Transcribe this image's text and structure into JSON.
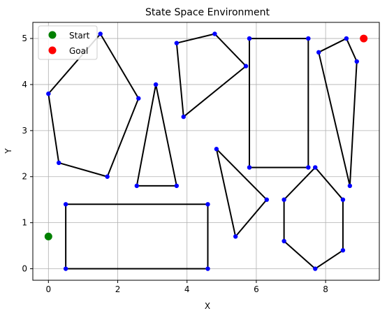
{
  "chart_data": {
    "type": "scatter",
    "title": "State Space Environment",
    "xlabel": "X",
    "ylabel": "Y",
    "xlim": [
      -0.45,
      9.55
    ],
    "ylim": [
      -0.25,
      5.35
    ],
    "xticks": [
      0,
      2,
      4,
      6,
      8
    ],
    "yticks": [
      0,
      1,
      2,
      3,
      4,
      5
    ],
    "grid": true,
    "legend": {
      "placement": "top-left",
      "entries": [
        {
          "name": "Start",
          "color": "#008000"
        },
        {
          "name": "Goal",
          "color": "#ff0000"
        }
      ]
    },
    "start": {
      "x": 0,
      "y": 0.7,
      "color": "#008000"
    },
    "goal": {
      "x": 9.1,
      "y": 5.0,
      "color": "#ff0000"
    },
    "obstacle_edge_color": "#000000",
    "vertex_color": "#0000ff",
    "obstacles": [
      [
        [
          0,
          3.8
        ],
        [
          1.5,
          5.1
        ],
        [
          2.6,
          3.7
        ],
        [
          1.7,
          2.0
        ],
        [
          0.3,
          2.3
        ]
      ],
      [
        [
          3.1,
          4.0
        ],
        [
          2.55,
          1.8
        ],
        [
          3.7,
          1.8
        ]
      ],
      [
        [
          3.7,
          4.9
        ],
        [
          4.8,
          5.1
        ],
        [
          5.7,
          4.4
        ],
        [
          3.9,
          3.3
        ]
      ],
      [
        [
          5.8,
          5.0
        ],
        [
          7.5,
          5.0
        ],
        [
          7.5,
          2.2
        ],
        [
          5.8,
          2.2
        ]
      ],
      [
        [
          7.8,
          4.7
        ],
        [
          8.6,
          5.0
        ],
        [
          8.9,
          4.5
        ],
        [
          8.7,
          1.8
        ]
      ],
      [
        [
          4.85,
          2.6
        ],
        [
          6.3,
          1.5
        ],
        [
          5.4,
          0.7
        ]
      ],
      [
        [
          0.5,
          1.4
        ],
        [
          4.6,
          1.4
        ],
        [
          4.6,
          0.0
        ],
        [
          0.5,
          0.0
        ]
      ],
      [
        [
          6.8,
          1.5
        ],
        [
          7.7,
          2.2
        ],
        [
          8.5,
          1.5
        ],
        [
          8.5,
          0.4
        ],
        [
          7.7,
          0.0
        ],
        [
          6.8,
          0.6
        ]
      ]
    ]
  }
}
